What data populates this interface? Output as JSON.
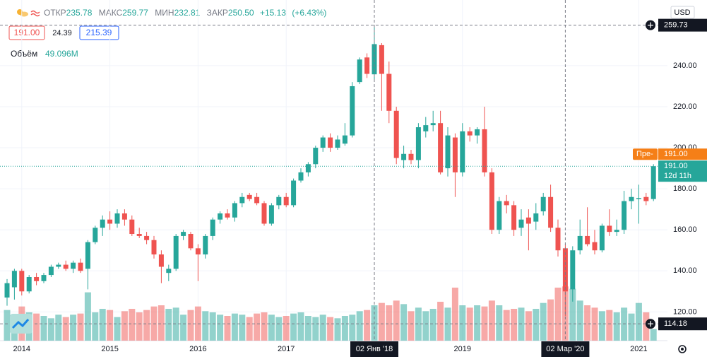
{
  "chart_data": {
    "type": "candlestick",
    "header": {
      "open_label": "ОТКР",
      "open": "235.78",
      "high_label": "МАКС",
      "high": "259.77",
      "low_label": "МИН",
      "low": "232.81",
      "close_label": "ЗАКР",
      "close": "250.50",
      "change": "+15.13",
      "change_pct": "(+6.43%)"
    },
    "bid": "191.00",
    "spread": "24.39",
    "ask": "215.39",
    "volume_name": "Объём",
    "volume_label": "49.096M",
    "currency": "USD",
    "up_color": "#26a69a",
    "down_color": "#ef5350",
    "categories": [
      null,
      null,
      "2014",
      null,
      null,
      null,
      null,
      null,
      null,
      null,
      null,
      null,
      null,
      null,
      "2015",
      null,
      null,
      null,
      null,
      null,
      null,
      null,
      null,
      null,
      null,
      null,
      "2016",
      null,
      null,
      null,
      null,
      null,
      null,
      null,
      null,
      null,
      null,
      null,
      "2017",
      null,
      null,
      null,
      null,
      null,
      null,
      null,
      null,
      null,
      null,
      null,
      "02 Янв '18",
      null,
      null,
      null,
      null,
      null,
      null,
      null,
      null,
      null,
      null,
      null,
      "2019",
      null,
      null,
      null,
      null,
      null,
      null,
      null,
      null,
      null,
      null,
      null,
      null,
      null,
      "02 Мар '20",
      null,
      null,
      null,
      null,
      null,
      null,
      null,
      null,
      null,
      "2021",
      null,
      null
    ],
    "open": [
      127,
      132,
      140,
      130,
      137,
      135,
      138,
      142,
      143,
      141,
      144,
      141,
      154,
      161,
      165,
      163,
      168,
      165,
      158,
      157,
      155,
      148,
      139,
      141,
      157,
      158,
      151,
      148,
      157,
      165,
      168,
      166,
      173,
      177,
      176,
      173,
      163,
      172,
      176,
      172,
      184,
      188,
      192,
      200,
      205,
      200,
      202,
      206,
      232,
      244,
      235.78,
      250,
      236,
      218,
      194,
      197,
      194,
      208,
      211,
      212,
      190,
      205,
      188,
      208,
      206,
      209,
      188,
      160,
      174,
      172,
      161,
      166,
      164,
      169,
      176,
      161,
      151,
      131,
      150,
      157,
      154,
      150,
      162,
      159,
      160,
      174,
      175,
      176,
      175
    ],
    "high": [
      136,
      141,
      141,
      138,
      139,
      139,
      143,
      144,
      145,
      145,
      146,
      155,
      162,
      167,
      169,
      170,
      170,
      167,
      161,
      159,
      157,
      150,
      143,
      158,
      160,
      159,
      153,
      158,
      166,
      169,
      170,
      174,
      178,
      178,
      178,
      174,
      173,
      177,
      178,
      185,
      190,
      193,
      201,
      206,
      207,
      206,
      212,
      232,
      244,
      246,
      259.77,
      251,
      242,
      220,
      201,
      199,
      212,
      215,
      218,
      218,
      210,
      207,
      212,
      210,
      210,
      220,
      190,
      176,
      177,
      174,
      170,
      170,
      173,
      178,
      182,
      165,
      153,
      152,
      165,
      171,
      160,
      163,
      170,
      165,
      179,
      180,
      182,
      178,
      192
    ],
    "low": [
      123,
      126,
      128,
      129,
      133,
      134,
      137,
      141,
      140,
      139,
      139,
      131,
      153,
      157,
      160,
      161,
      162,
      157,
      156,
      153,
      146,
      134,
      135,
      140,
      155,
      150,
      135,
      146,
      155,
      163,
      165,
      164,
      171,
      174,
      172,
      162,
      162,
      170,
      171,
      171,
      183,
      186,
      190,
      198,
      198,
      199,
      201,
      205,
      231,
      234,
      232.81,
      218,
      212,
      192,
      190,
      192,
      190,
      205,
      208,
      187,
      186,
      176,
      186,
      203,
      202,
      186,
      158,
      158,
      168,
      157,
      157,
      150,
      160,
      167,
      159,
      147,
      118,
      125,
      148,
      152,
      148,
      149,
      157,
      157,
      158,
      170,
      163,
      172,
      174
    ],
    "close": [
      134,
      140,
      130,
      137,
      135,
      138,
      142,
      143,
      141,
      144,
      140,
      154,
      161,
      165,
      163,
      168,
      165,
      158,
      157,
      155,
      148,
      142,
      141,
      157,
      159,
      151,
      148,
      157,
      165,
      168,
      166,
      173,
      176,
      175,
      173,
      163,
      172,
      176,
      172,
      184,
      188,
      192,
      200,
      205,
      200,
      204,
      206,
      230,
      243,
      236,
      250.5,
      236,
      218,
      195,
      197,
      194,
      210,
      211,
      212,
      188,
      206,
      188,
      208,
      206,
      209,
      188,
      160,
      174,
      172,
      160,
      165,
      163,
      168,
      176,
      161,
      150,
      130,
      150,
      157,
      153,
      150,
      162,
      159,
      160,
      174,
      176,
      175.5,
      174,
      191
    ],
    "volume": [
      130,
      110,
      145,
      120,
      115,
      105,
      95,
      110,
      100,
      110,
      115,
      205,
      120,
      135,
      130,
      100,
      125,
      135,
      120,
      130,
      145,
      150,
      135,
      140,
      110,
      130,
      145,
      125,
      120,
      110,
      105,
      115,
      110,
      100,
      115,
      120,
      110,
      100,
      105,
      115,
      120,
      105,
      100,
      110,
      100,
      95,
      105,
      110,
      125,
      130,
      150,
      160,
      150,
      170,
      155,
      125,
      140,
      125,
      135,
      165,
      140,
      225,
      150,
      140,
      150,
      145,
      170,
      150,
      130,
      135,
      140,
      125,
      135,
      160,
      175,
      225,
      230,
      220,
      170,
      150,
      140,
      125,
      130,
      120,
      140,
      115,
      160,
      120,
      49.096
    ],
    "vlim": [
      0,
      600
    ],
    "ylim": [
      106,
      272
    ],
    "yticks": [
      {
        "value": 240,
        "label": "240.00"
      },
      {
        "value": 220,
        "label": "220.00"
      },
      {
        "value": 200,
        "label": "200.00"
      },
      {
        "value": 180,
        "label": "180.00"
      },
      {
        "value": 160,
        "label": "160.00"
      },
      {
        "value": 140,
        "label": "140.00"
      },
      {
        "value": 120,
        "label": "120.00"
      }
    ],
    "crosshair_prices": [
      {
        "value": 259.73,
        "label": "259.73"
      },
      {
        "value": 114.18,
        "label": "114.18"
      }
    ],
    "premarket": {
      "name": "Пре-",
      "label": "191.00"
    },
    "last_price": {
      "value": 191,
      "label": "191.00"
    },
    "countdown": "12d 11h",
    "grid": true
  }
}
